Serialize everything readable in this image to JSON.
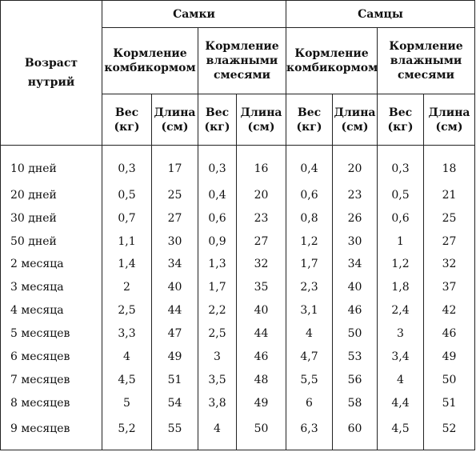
{
  "header": {
    "age": "Возраст нутрий",
    "females": "Самки",
    "males": "Самцы",
    "feed_compound": "Кормление комбикормом",
    "feed_wet": "Кормление влажными смесями",
    "weight": "Вес (кг)",
    "length": "Длина (см)"
  },
  "rows": [
    {
      "age": "10 дней",
      "cells": [
        "0,3",
        "17",
        "0,3",
        "16",
        "0,4",
        "20",
        "0,3",
        "18"
      ]
    },
    {
      "age": "20 дней",
      "cells": [
        "0,5",
        "25",
        "0,4",
        "20",
        "0,6",
        "23",
        "0,5",
        "21"
      ]
    },
    {
      "age": "30 дней",
      "cells": [
        "0,7",
        "27",
        "0,6",
        "23",
        "0,8",
        "26",
        "0,6",
        "25"
      ]
    },
    {
      "age": "50 дней",
      "cells": [
        "1,1",
        "30",
        "0,9",
        "27",
        "1,2",
        "30",
        "1",
        "27"
      ]
    },
    {
      "age": "2 месяца",
      "cells": [
        "1,4",
        "34",
        "1,3",
        "32",
        "1,7",
        "34",
        "1,2",
        "32"
      ]
    },
    {
      "age": "3 месяца",
      "cells": [
        "2",
        "40",
        "1,7",
        "35",
        "2,3",
        "40",
        "1,8",
        "37"
      ]
    },
    {
      "age": "4 месяца",
      "cells": [
        "2,5",
        "44",
        "2,2",
        "40",
        "3,1",
        "46",
        "2,4",
        "42"
      ]
    },
    {
      "age": "5 месяцев",
      "cells": [
        "3,3",
        "47",
        "2,5",
        "44",
        "4",
        "50",
        "3",
        "46"
      ]
    },
    {
      "age": "6 месяцев",
      "cells": [
        "4",
        "49",
        "3",
        "46",
        "4,7",
        "53",
        "3,4",
        "49"
      ]
    },
    {
      "age": "7 месяцев",
      "cells": [
        "4,5",
        "51",
        "3,5",
        "48",
        "5,5",
        "56",
        "4",
        "50"
      ]
    },
    {
      "age": "8 месяцев",
      "cells": [
        "5",
        "54",
        "3,8",
        "49",
        "6",
        "58",
        "4,4",
        "51"
      ]
    },
    {
      "age": "9 месяцев",
      "cells": [
        "5,2",
        "55",
        "4",
        "50",
        "6,3",
        "60",
        "4,5",
        "52"
      ]
    }
  ]
}
